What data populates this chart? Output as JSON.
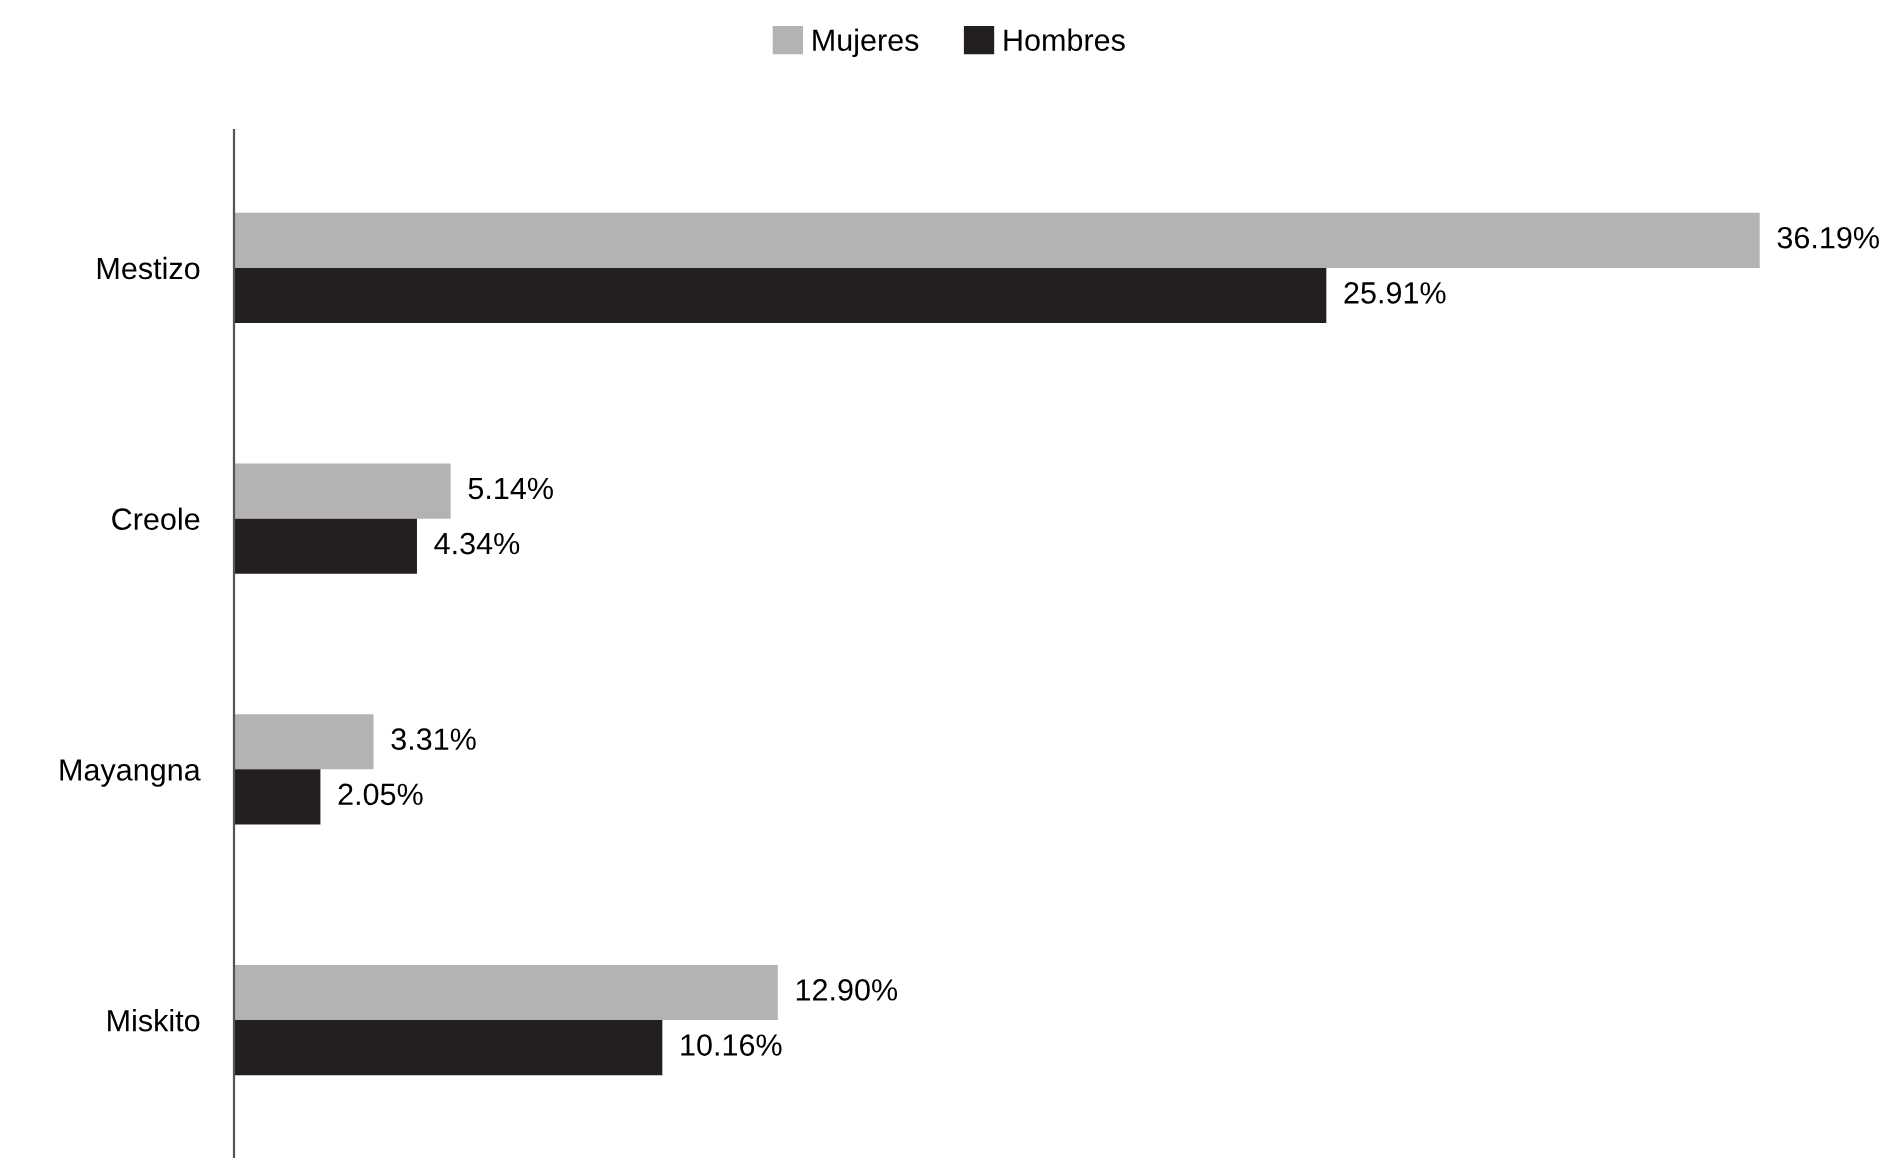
{
  "chart_data": {
    "type": "bar",
    "orientation": "horizontal",
    "categories": [
      "Mestizo",
      "Creole",
      "Mayangna",
      "Miskito"
    ],
    "series": [
      {
        "name": "Mujeres",
        "color": "#b3b3b3",
        "values": [
          36.19,
          5.14,
          3.31,
          12.9
        ],
        "value_labels": [
          "36.19%",
          "5.14%",
          "3.31%",
          "12.90%"
        ]
      },
      {
        "name": "Hombres",
        "color": "#231f20",
        "values": [
          25.91,
          4.34,
          2.05,
          10.16
        ],
        "value_labels": [
          "25.91%",
          "4.34%",
          "2.05%",
          "10.16%"
        ]
      }
    ],
    "tick_labels": "y",
    "legend": "top",
    "grid": false
  }
}
